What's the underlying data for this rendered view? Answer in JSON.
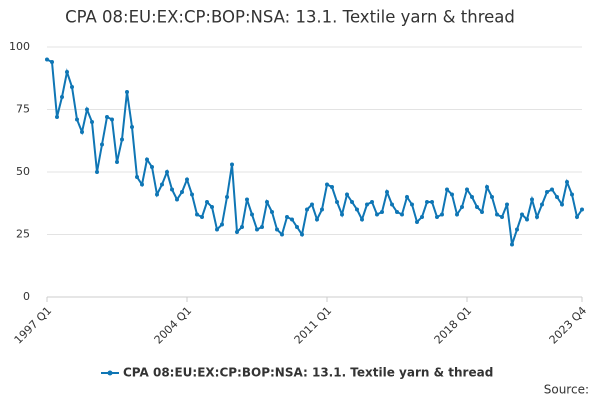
{
  "chart_data": {
    "type": "line",
    "title": "CPA 08:EU:EX:CP:BOP:NSA: 13.1. Textile yarn & thread",
    "source": "Source:",
    "categories": [
      "1997 Q1",
      null,
      null,
      null,
      null,
      null,
      null,
      null,
      null,
      null,
      null,
      null,
      null,
      null,
      null,
      null,
      null,
      null,
      null,
      null,
      null,
      null,
      null,
      null,
      null,
      null,
      null,
      null,
      "2004 Q1",
      null,
      null,
      null,
      null,
      null,
      null,
      null,
      null,
      null,
      null,
      null,
      null,
      null,
      null,
      null,
      null,
      null,
      null,
      null,
      null,
      null,
      null,
      null,
      null,
      null,
      null,
      null,
      "2011 Q1",
      null,
      null,
      null,
      null,
      null,
      null,
      null,
      null,
      null,
      null,
      null,
      null,
      null,
      null,
      null,
      null,
      null,
      null,
      null,
      null,
      null,
      null,
      null,
      null,
      null,
      null,
      null,
      "2018 Q1",
      null,
      null,
      null,
      null,
      null,
      null,
      null,
      null,
      null,
      null,
      null,
      null,
      null,
      null,
      null,
      null,
      null,
      null,
      null,
      null,
      null,
      null,
      "2023 Q4"
    ],
    "series": [
      {
        "name": "CPA 08:EU:EX:CP:BOP:NSA: 13.1. Textile yarn & thread",
        "color": "#0f76b5",
        "values": [
          95,
          94,
          72,
          80,
          90,
          84,
          71,
          66,
          75,
          70,
          50,
          61,
          72,
          71,
          54,
          63,
          82,
          68,
          48,
          45,
          55,
          52,
          41,
          45,
          50,
          43,
          39,
          42,
          47,
          41,
          33,
          32,
          38,
          36,
          27,
          29,
          40,
          53,
          26,
          28,
          39,
          33,
          27,
          28,
          38,
          34,
          27,
          25,
          32,
          31,
          28,
          25,
          35,
          37,
          31,
          35,
          45,
          44,
          38,
          33,
          41,
          38,
          35,
          31,
          37,
          38,
          33,
          34,
          42,
          37,
          34,
          33,
          40,
          37,
          30,
          32,
          38,
          38,
          32,
          33,
          43,
          41,
          33,
          36,
          43,
          40,
          36,
          34,
          44,
          40,
          33,
          32,
          37,
          21,
          27,
          33,
          31,
          39,
          32,
          37,
          42,
          43,
          40,
          37,
          46,
          41,
          32,
          35
        ]
      }
    ],
    "ylim": [
      0,
      100
    ],
    "yticks": [
      0,
      25,
      50,
      75,
      100
    ],
    "grid": true,
    "legend": "bottom"
  }
}
